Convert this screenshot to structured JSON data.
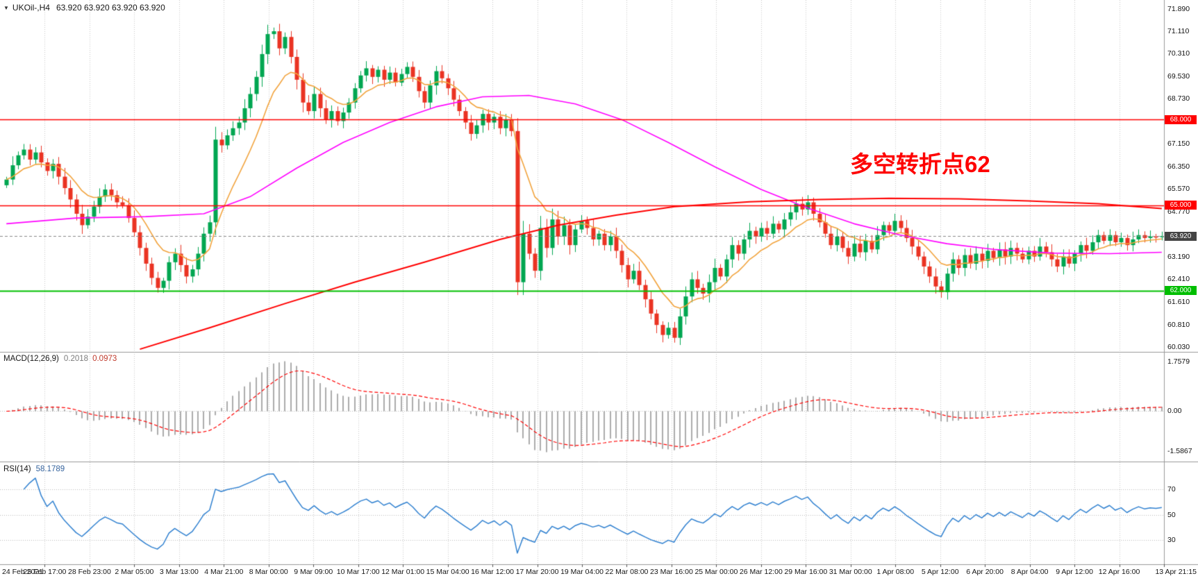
{
  "header": {
    "dropdown_icon": "▼",
    "symbol": "UKOil-,H4",
    "ohlc": "63.920 63.920 63.920 63.920"
  },
  "annotation": {
    "text": "多空转折点62",
    "color": "#FE0000"
  },
  "macd_panel": {
    "label": "MACD(12,26,9)",
    "value_main": "0.2018",
    "value_signal": "0.0973",
    "axis_labels": {
      "max": "1.7579",
      "zero": "0.00",
      "min": "-1.5867"
    }
  },
  "rsi_panel": {
    "label": "RSI(14)",
    "value": "58.1789",
    "axis_labels": [
      "70",
      "50",
      "30"
    ]
  },
  "price_axis": {
    "ticks": [
      "71.890",
      "71.110",
      "70.310",
      "69.530",
      "68.730",
      "67.950",
      "67.150",
      "66.350",
      "65.570",
      "64.770",
      "63.190",
      "62.410",
      "61.610",
      "60.810",
      "60.030"
    ],
    "badges": [
      {
        "label": "68.000",
        "value": 68.0,
        "color": "#FF0000"
      },
      {
        "label": "65.000",
        "value": 65.0,
        "color": "#FF0000"
      },
      {
        "label": "63.920",
        "value": 63.92,
        "color": "#444444"
      },
      {
        "label": "62.000",
        "value": 62.0,
        "color": "#00BE00"
      }
    ]
  },
  "colors": {
    "background": "#FFFFFF",
    "grid": "#C9C9C9",
    "separator": "#999999",
    "up": "#00A651",
    "down": "#EA3323",
    "ma_fast": "#F2A33C",
    "ma_mid": "#FF00FF",
    "ma_slow": "#FF0000",
    "hline_red": "#FF0000",
    "hline_green": "#00C000",
    "current_line": "#888888",
    "macd_hist": "#ABABAB",
    "macd_signal": "#FF0000",
    "rsi_line": "#2F80D0",
    "level_dotted": "#BDBDBD"
  },
  "chart_data": [
    {
      "type": "candlestick",
      "title": "UKOil-,H4",
      "timeframe": "H4",
      "ylim": [
        59.88,
        72.05
      ],
      "x_labels": [
        "24 Feb 2021",
        "25 Feb 17:00",
        "28 Feb 23:00",
        "2 Mar 05:00",
        "3 Mar 13:00",
        "4 Mar 21:00",
        "8 Mar 00:00",
        "9 Mar 09:00",
        "10 Mar 17:00",
        "12 Mar 01:00",
        "15 Mar 04:00",
        "16 Mar 12:00",
        "17 Mar 20:00",
        "19 Mar 04:00",
        "22 Mar 08:00",
        "23 Mar 16:00",
        "25 Mar 00:00",
        "26 Mar 12:00",
        "29 Mar 16:00",
        "31 Mar 00:00",
        "1 Apr 08:00",
        "5 Apr 12:00",
        "6 Apr 20:00",
        "8 Apr 04:00",
        "9 Apr 12:00",
        "12 Apr 16:00",
        "13 Apr 21:15"
      ],
      "first_open": 65.7,
      "closes": [
        65.9,
        66.4,
        66.75,
        66.95,
        66.6,
        66.85,
        66.5,
        66.2,
        66.45,
        66.0,
        65.6,
        65.2,
        64.7,
        64.3,
        64.6,
        64.95,
        65.3,
        65.55,
        65.35,
        65.1,
        65.0,
        64.55,
        64.05,
        63.5,
        62.95,
        62.45,
        62.1,
        62.35,
        63.0,
        63.3,
        62.9,
        62.5,
        62.75,
        63.3,
        64.0,
        64.4,
        67.3,
        67.1,
        67.45,
        67.7,
        67.9,
        68.4,
        68.9,
        69.5,
        70.3,
        71.0,
        71.1,
        70.5,
        70.9,
        70.2,
        69.4,
        68.6,
        68.3,
        68.9,
        68.4,
        68.0,
        68.3,
        67.95,
        68.25,
        68.6,
        69.1,
        69.55,
        69.8,
        69.5,
        69.75,
        69.4,
        69.65,
        69.3,
        69.6,
        69.85,
        69.5,
        69.0,
        68.6,
        69.2,
        69.7,
        69.45,
        69.1,
        68.7,
        68.3,
        67.9,
        67.5,
        67.8,
        68.2,
        67.9,
        68.1,
        67.7,
        68.0,
        67.6,
        62.3,
        64.0,
        63.3,
        62.7,
        64.2,
        63.5,
        64.5,
        63.9,
        64.3,
        63.6,
        64.15,
        64.45,
        64.2,
        63.8,
        64.0,
        63.6,
        63.9,
        63.4,
        62.9,
        62.4,
        62.7,
        62.2,
        61.7,
        61.2,
        60.8,
        60.45,
        60.7,
        60.35,
        61.1,
        61.8,
        62.4,
        62.1,
        61.9,
        62.3,
        62.8,
        62.5,
        63.1,
        63.6,
        63.3,
        63.8,
        64.1,
        63.9,
        64.2,
        64.0,
        64.35,
        64.15,
        64.5,
        64.75,
        65.05,
        64.85,
        65.1,
        64.7,
        64.4,
        64.0,
        63.6,
        63.9,
        63.5,
        63.2,
        63.65,
        63.35,
        63.75,
        63.45,
        63.95,
        64.3,
        64.1,
        64.45,
        64.2,
        63.85,
        63.55,
        63.2,
        62.85,
        62.5,
        62.15,
        61.95,
        62.6,
        63.1,
        62.8,
        63.25,
        62.95,
        63.3,
        63.05,
        63.4,
        63.15,
        63.45,
        63.2,
        63.5,
        63.3,
        63.1,
        63.4,
        63.2,
        63.55,
        63.35,
        63.1,
        62.85,
        63.2,
        62.95,
        63.3,
        63.6,
        63.4,
        63.7,
        63.95,
        63.75,
        63.95,
        63.7,
        63.85,
        63.6,
        63.8,
        63.95,
        63.85,
        63.9,
        63.88,
        63.92
      ],
      "key_levels": {
        "resistance": [
          68.0,
          65.0
        ],
        "support": [
          62.0
        ],
        "last_price": 63.92
      },
      "moving_averages": {
        "fast_ema_period": 10,
        "mid_waypoints": [
          [
            0,
            64.35
          ],
          [
            12,
            64.55
          ],
          [
            24,
            64.6
          ],
          [
            34,
            64.7
          ],
          [
            42,
            65.3
          ],
          [
            50,
            66.3
          ],
          [
            58,
            67.2
          ],
          [
            66,
            67.9
          ],
          [
            74,
            68.45
          ],
          [
            82,
            68.8
          ],
          [
            90,
            68.85
          ],
          [
            98,
            68.55
          ],
          [
            106,
            68.0
          ],
          [
            114,
            67.2
          ],
          [
            122,
            66.35
          ],
          [
            130,
            65.55
          ],
          [
            138,
            64.9
          ],
          [
            146,
            64.35
          ],
          [
            154,
            63.95
          ],
          [
            162,
            63.65
          ],
          [
            170,
            63.45
          ],
          [
            180,
            63.32
          ],
          [
            190,
            63.3
          ],
          [
            199,
            63.35
          ]
        ],
        "slow_waypoints": [
          [
            23,
            59.95
          ],
          [
            35,
            60.7
          ],
          [
            48,
            61.55
          ],
          [
            60,
            62.3
          ],
          [
            72,
            63.0
          ],
          [
            85,
            63.8
          ],
          [
            95,
            64.3
          ],
          [
            105,
            64.65
          ],
          [
            115,
            64.95
          ],
          [
            128,
            65.12
          ],
          [
            140,
            65.2
          ],
          [
            152,
            65.24
          ],
          [
            164,
            65.22
          ],
          [
            176,
            65.15
          ],
          [
            188,
            65.05
          ],
          [
            199,
            64.88
          ]
        ]
      }
    },
    {
      "type": "bar",
      "name": "MACD(12,26,9)",
      "params": [
        12,
        26,
        9
      ],
      "derived_from": "closes",
      "last_values": [
        0.2018,
        0.0973
      ],
      "ylim": [
        -1.5867,
        1.7579
      ]
    },
    {
      "type": "line",
      "name": "RSI(14)",
      "period": 14,
      "derived_from": "closes",
      "last_value": 58.1789,
      "levels": [
        70,
        50,
        30
      ],
      "ylim": [
        15,
        88
      ]
    }
  ]
}
